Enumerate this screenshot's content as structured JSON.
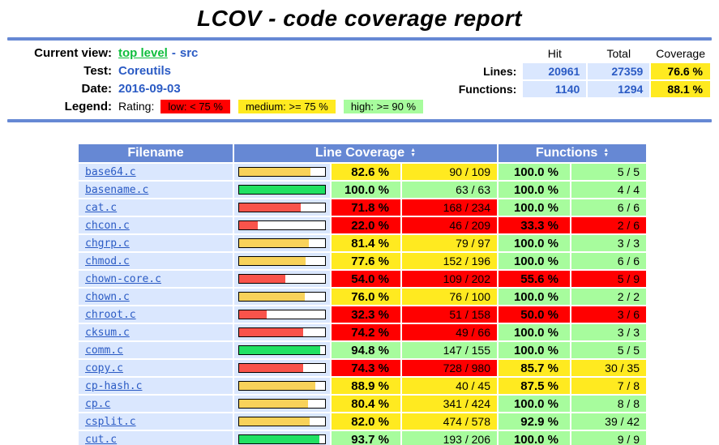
{
  "page": {
    "title": "LCOV - code coverage report"
  },
  "info": {
    "current_view_label": "Current view:",
    "current_view_link": "top level",
    "current_view_sep": "-",
    "current_view_page": "src",
    "test_label": "Test:",
    "test_value": "Coreutils",
    "date_label": "Date:",
    "date_value": "2016-09-03",
    "legend_label": "Legend:",
    "rating_label": "Rating:",
    "legend_low": "low: < 75 %",
    "legend_medium": "medium: >= 75 %",
    "legend_high": "high: >= 90 %"
  },
  "stats": {
    "headers": {
      "hit": "Hit",
      "total": "Total",
      "coverage": "Coverage"
    },
    "rows": [
      {
        "label": "Lines:",
        "hit": "20961",
        "total": "27359",
        "coverage": "76.6 %",
        "rating": "medium"
      },
      {
        "label": "Functions:",
        "hit": "1140",
        "total": "1294",
        "coverage": "88.1 %",
        "rating": "medium"
      }
    ]
  },
  "table": {
    "headers": {
      "filename": "Filename",
      "line_coverage": "Line Coverage",
      "functions": "Functions"
    },
    "rows": [
      {
        "file": "base64.c",
        "line_pct": 82.6,
        "line_pct_text": "82.6 %",
        "line_ratio": "90 / 109",
        "line_rating": "medium",
        "func_pct_text": "100.0 %",
        "func_ratio": "5 / 5",
        "func_rating": "high"
      },
      {
        "file": "basename.c",
        "line_pct": 100.0,
        "line_pct_text": "100.0 %",
        "line_ratio": "63 / 63",
        "line_rating": "high",
        "func_pct_text": "100.0 %",
        "func_ratio": "4 / 4",
        "func_rating": "high"
      },
      {
        "file": "cat.c",
        "line_pct": 71.8,
        "line_pct_text": "71.8 %",
        "line_ratio": "168 / 234",
        "line_rating": "low",
        "func_pct_text": "100.0 %",
        "func_ratio": "6 / 6",
        "func_rating": "high"
      },
      {
        "file": "chcon.c",
        "line_pct": 22.0,
        "line_pct_text": "22.0 %",
        "line_ratio": "46 / 209",
        "line_rating": "low",
        "func_pct_text": "33.3 %",
        "func_ratio": "2 / 6",
        "func_rating": "low"
      },
      {
        "file": "chgrp.c",
        "line_pct": 81.4,
        "line_pct_text": "81.4 %",
        "line_ratio": "79 / 97",
        "line_rating": "medium",
        "func_pct_text": "100.0 %",
        "func_ratio": "3 / 3",
        "func_rating": "high"
      },
      {
        "file": "chmod.c",
        "line_pct": 77.6,
        "line_pct_text": "77.6 %",
        "line_ratio": "152 / 196",
        "line_rating": "medium",
        "func_pct_text": "100.0 %",
        "func_ratio": "6 / 6",
        "func_rating": "high"
      },
      {
        "file": "chown-core.c",
        "line_pct": 54.0,
        "line_pct_text": "54.0 %",
        "line_ratio": "109 / 202",
        "line_rating": "low",
        "func_pct_text": "55.6 %",
        "func_ratio": "5 / 9",
        "func_rating": "low"
      },
      {
        "file": "chown.c",
        "line_pct": 76.0,
        "line_pct_text": "76.0 %",
        "line_ratio": "76 / 100",
        "line_rating": "medium",
        "func_pct_text": "100.0 %",
        "func_ratio": "2 / 2",
        "func_rating": "high"
      },
      {
        "file": "chroot.c",
        "line_pct": 32.3,
        "line_pct_text": "32.3 %",
        "line_ratio": "51 / 158",
        "line_rating": "low",
        "func_pct_text": "50.0 %",
        "func_ratio": "3 / 6",
        "func_rating": "low"
      },
      {
        "file": "cksum.c",
        "line_pct": 74.2,
        "line_pct_text": "74.2 %",
        "line_ratio": "49 / 66",
        "line_rating": "low",
        "func_pct_text": "100.0 %",
        "func_ratio": "3 / 3",
        "func_rating": "high"
      },
      {
        "file": "comm.c",
        "line_pct": 94.8,
        "line_pct_text": "94.8 %",
        "line_ratio": "147 / 155",
        "line_rating": "high",
        "func_pct_text": "100.0 %",
        "func_ratio": "5 / 5",
        "func_rating": "high"
      },
      {
        "file": "copy.c",
        "line_pct": 74.3,
        "line_pct_text": "74.3 %",
        "line_ratio": "728 / 980",
        "line_rating": "low",
        "func_pct_text": "85.7 %",
        "func_ratio": "30 / 35",
        "func_rating": "medium"
      },
      {
        "file": "cp-hash.c",
        "line_pct": 88.9,
        "line_pct_text": "88.9 %",
        "line_ratio": "40 / 45",
        "line_rating": "medium",
        "func_pct_text": "87.5 %",
        "func_ratio": "7 / 8",
        "func_rating": "medium"
      },
      {
        "file": "cp.c",
        "line_pct": 80.4,
        "line_pct_text": "80.4 %",
        "line_ratio": "341 / 424",
        "line_rating": "medium",
        "func_pct_text": "100.0 %",
        "func_ratio": "8 / 8",
        "func_rating": "high"
      },
      {
        "file": "csplit.c",
        "line_pct": 82.0,
        "line_pct_text": "82.0 %",
        "line_ratio": "474 / 578",
        "line_rating": "medium",
        "func_pct_text": "92.9 %",
        "func_ratio": "39 / 42",
        "func_rating": "high"
      },
      {
        "file": "cut.c",
        "line_pct": 93.7,
        "line_pct_text": "93.7 %",
        "line_ratio": "193 / 206",
        "line_rating": "high",
        "func_pct_text": "100.0 %",
        "func_ratio": "9 / 9",
        "func_rating": "high"
      }
    ]
  },
  "colors": {
    "header_blue": "#6688D4",
    "row_blue": "#DAE7FE",
    "rating_low": "#FF0000",
    "rating_medium": "#FFEA20",
    "rating_high": "#A7FC9D",
    "bar_low": "#F9534B",
    "bar_medium": "#F8D25A",
    "bar_high": "#20E162",
    "link_blue": "#2B5BC4",
    "link_green": "#0FBE3D"
  }
}
